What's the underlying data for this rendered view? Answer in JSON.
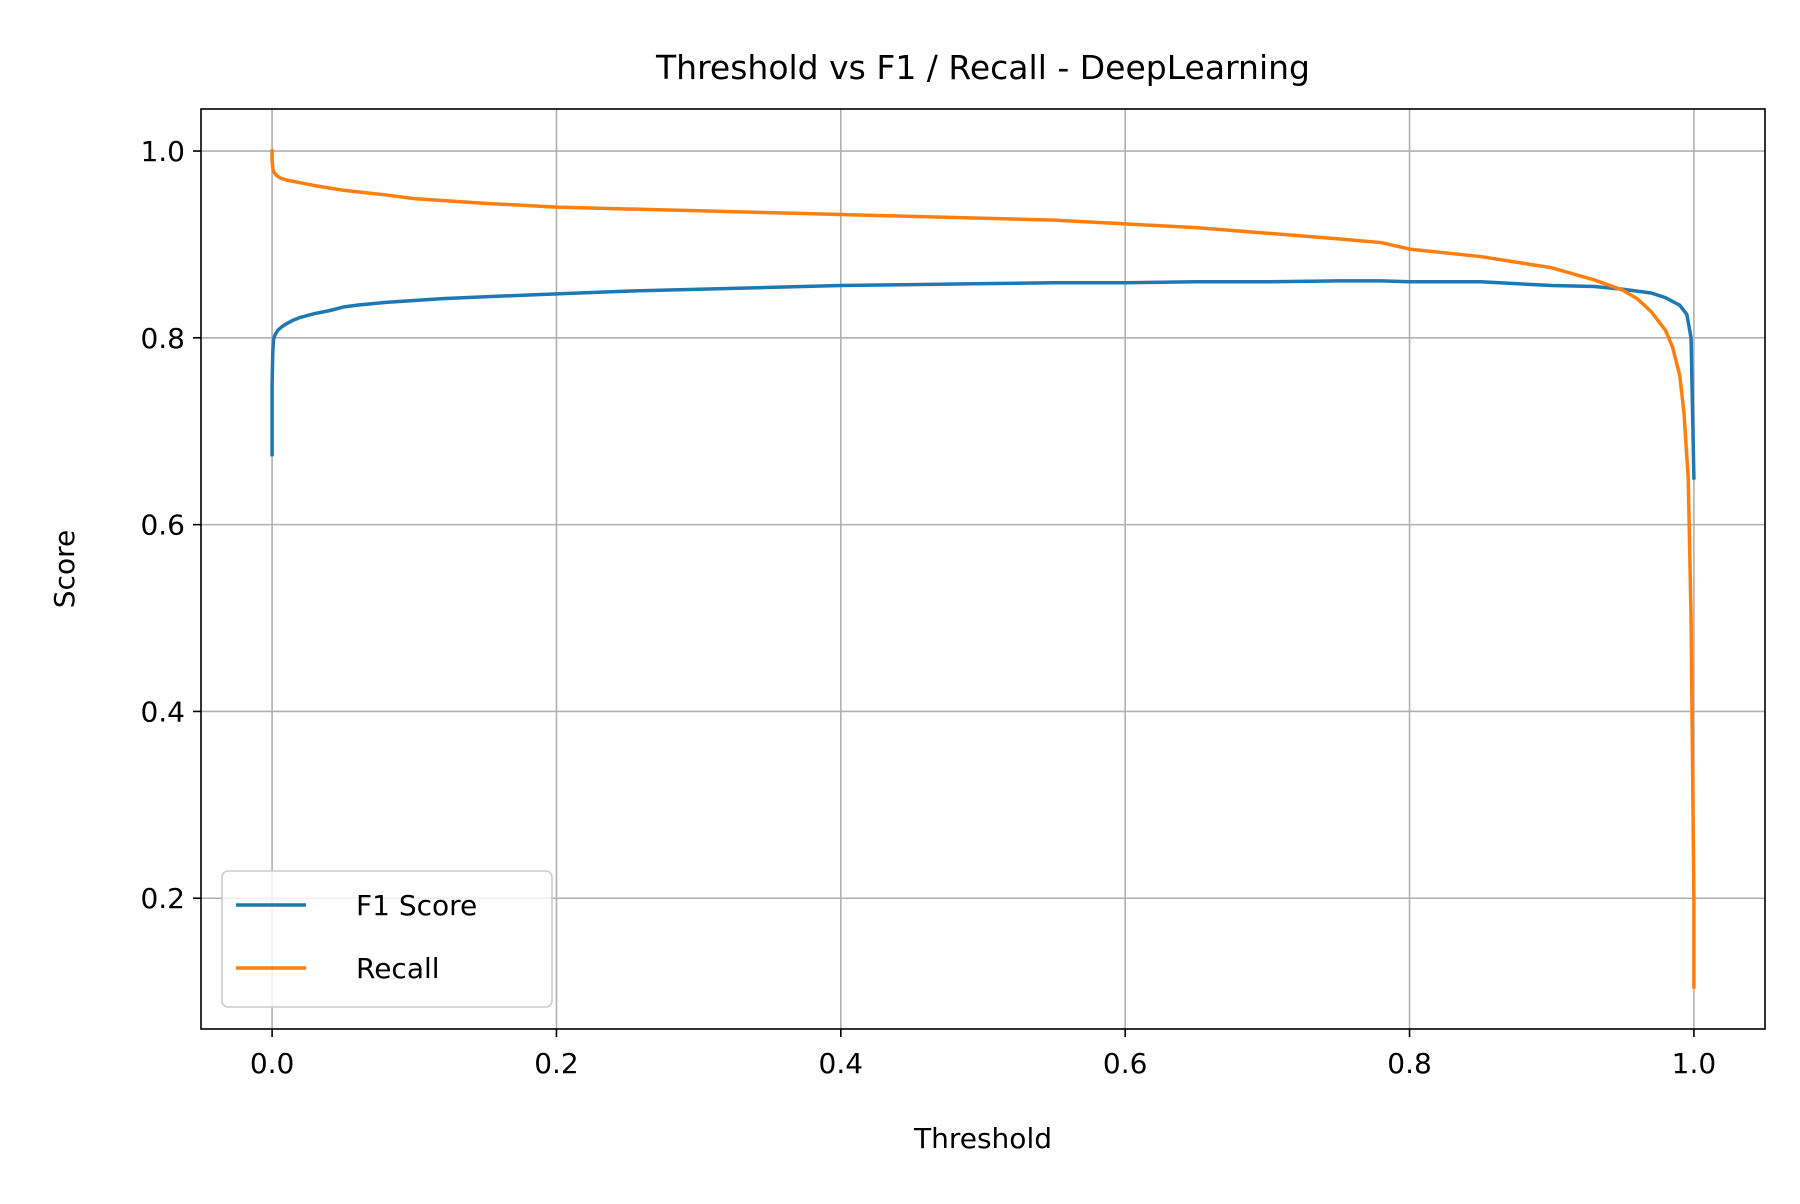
{
  "chart_data": {
    "type": "line",
    "title": "Threshold vs F1 / Recall - DeepLearning",
    "xlabel": "Threshold",
    "ylabel": "Score",
    "xlim": [
      -0.05,
      1.05
    ],
    "ylim": [
      0.06,
      1.045
    ],
    "xticks": [
      0.0,
      0.2,
      0.4,
      0.6,
      0.8,
      1.0
    ],
    "xtick_labels": [
      "0.0",
      "0.2",
      "0.4",
      "0.6",
      "0.8",
      "1.0"
    ],
    "yticks": [
      0.2,
      0.4,
      0.6,
      0.8,
      1.0
    ],
    "ytick_labels": [
      "0.2",
      "0.4",
      "0.6",
      "0.8",
      "1.0"
    ],
    "grid": true,
    "legend_position": "lower-left",
    "series": [
      {
        "name": "F1 Score",
        "color": "#1f77b4",
        "x": [
          0.0,
          0.0,
          0.0005,
          0.001,
          0.002,
          0.004,
          0.007,
          0.01,
          0.015,
          0.02,
          0.03,
          0.04,
          0.05,
          0.06,
          0.08,
          0.1,
          0.12,
          0.15,
          0.2,
          0.25,
          0.3,
          0.35,
          0.4,
          0.45,
          0.5,
          0.55,
          0.6,
          0.65,
          0.7,
          0.75,
          0.78,
          0.8,
          0.85,
          0.9,
          0.93,
          0.95,
          0.97,
          0.98,
          0.99,
          0.995,
          0.998,
          1.0
        ],
        "y": [
          0.675,
          0.75,
          0.785,
          0.798,
          0.803,
          0.808,
          0.812,
          0.815,
          0.819,
          0.822,
          0.826,
          0.829,
          0.833,
          0.835,
          0.838,
          0.84,
          0.842,
          0.844,
          0.847,
          0.85,
          0.852,
          0.854,
          0.856,
          0.857,
          0.858,
          0.859,
          0.859,
          0.86,
          0.86,
          0.861,
          0.861,
          0.86,
          0.86,
          0.856,
          0.855,
          0.852,
          0.848,
          0.843,
          0.835,
          0.825,
          0.8,
          0.65
        ]
      },
      {
        "name": "Recall",
        "color": "#ff7f0e",
        "x": [
          0.0,
          0.0,
          0.0005,
          0.001,
          0.003,
          0.006,
          0.01,
          0.02,
          0.03,
          0.05,
          0.08,
          0.1,
          0.15,
          0.2,
          0.25,
          0.3,
          0.35,
          0.4,
          0.45,
          0.5,
          0.55,
          0.6,
          0.65,
          0.7,
          0.75,
          0.78,
          0.8,
          0.85,
          0.9,
          0.93,
          0.95,
          0.96,
          0.97,
          0.98,
          0.985,
          0.99,
          0.993,
          0.996,
          0.998,
          0.999,
          1.0,
          1.0
        ],
        "y": [
          1.0,
          0.99,
          0.982,
          0.978,
          0.974,
          0.971,
          0.969,
          0.966,
          0.963,
          0.958,
          0.953,
          0.949,
          0.944,
          0.94,
          0.938,
          0.936,
          0.934,
          0.932,
          0.93,
          0.928,
          0.926,
          0.922,
          0.918,
          0.912,
          0.906,
          0.902,
          0.895,
          0.887,
          0.875,
          0.862,
          0.851,
          0.842,
          0.828,
          0.808,
          0.79,
          0.76,
          0.72,
          0.65,
          0.5,
          0.35,
          0.2,
          0.105
        ]
      }
    ]
  }
}
